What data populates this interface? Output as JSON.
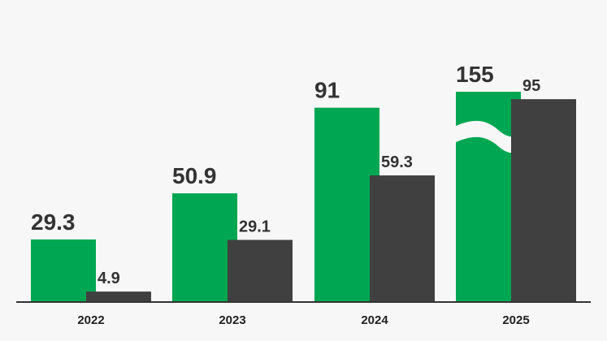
{
  "chart_data": {
    "type": "bar",
    "title": "",
    "xlabel": "",
    "ylabel": "",
    "categories": [
      "2022",
      "2023",
      "2024",
      "2025"
    ],
    "series": [
      {
        "values": [
          29.3,
          50.9,
          91,
          155
        ],
        "labels": [
          "29.3",
          "50.9",
          "91",
          "155"
        ],
        "color": "#00a651"
      },
      {
        "values": [
          4.9,
          29.1,
          59.3,
          95
        ],
        "labels": [
          "4.9",
          "29.1",
          "59.3",
          "95"
        ],
        "color": "#404040"
      }
    ],
    "axis_break": {
      "series": 0,
      "category": "2025"
    },
    "grid": false,
    "legend": "none",
    "baseline_color": "#333333",
    "background": "#f7f7f7"
  }
}
